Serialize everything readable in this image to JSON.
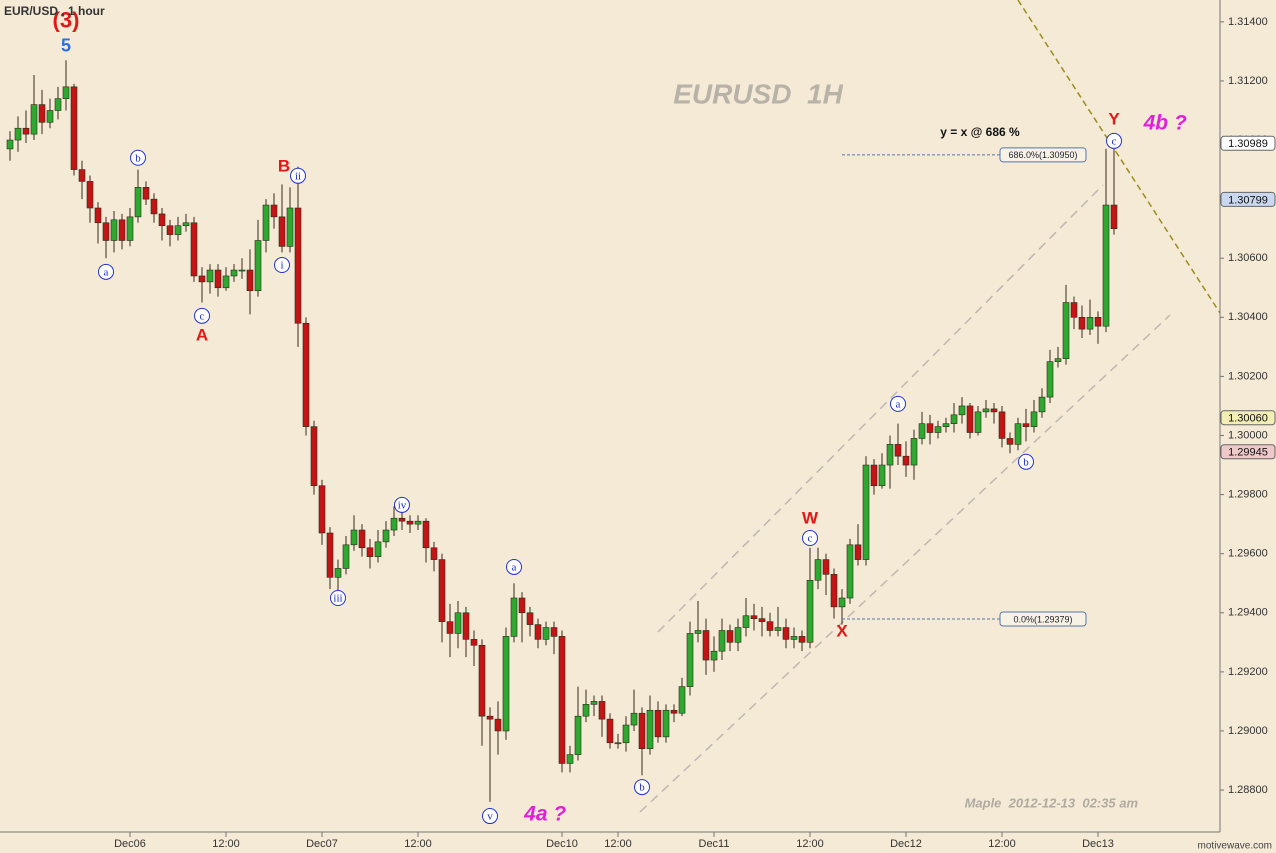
{
  "chart_data": {
    "type": "candlestick",
    "title": "EUR/USD , 1 hour",
    "watermark": "EURUSD  1H",
    "footer": "Maple  2012-12-13  02:35 am",
    "brand": "motivewave.com",
    "up_color": "#2ea82e",
    "down_color": "#c41414",
    "x": [
      0,
      1,
      2,
      3,
      4,
      5,
      6,
      7,
      8,
      9,
      10,
      11,
      12,
      13,
      14,
      15,
      16,
      17,
      18,
      19,
      20,
      21,
      22,
      23,
      24,
      25,
      26,
      27,
      28,
      29,
      30,
      31,
      32,
      33,
      34,
      35,
      36,
      37,
      38,
      39,
      40,
      41,
      42,
      43,
      44,
      45,
      46,
      47,
      48,
      49,
      50,
      51,
      52,
      53,
      54,
      55,
      56,
      57,
      58,
      59,
      60,
      61,
      62,
      63,
      64,
      65,
      66,
      67,
      68,
      69,
      70,
      71,
      72,
      73,
      74,
      75,
      76,
      77,
      78,
      79,
      80,
      81,
      82,
      83,
      84,
      85,
      86,
      87,
      88,
      89,
      90,
      91,
      92,
      93,
      94,
      95,
      96,
      97,
      98,
      99,
      100,
      101,
      102,
      103,
      104,
      105,
      106,
      107,
      108,
      109,
      110,
      111,
      112,
      113,
      114,
      115,
      116,
      117,
      118,
      119,
      120,
      121,
      122,
      123,
      124,
      125,
      126,
      127,
      128,
      129,
      130,
      131,
      132,
      133,
      134,
      135,
      136,
      137,
      138
    ],
    "open": [
      1.3097,
      1.31,
      1.3104,
      1.3102,
      1.3112,
      1.3106,
      1.311,
      1.3114,
      1.3118,
      1.309,
      1.3086,
      1.3077,
      1.3072,
      1.3066,
      1.3073,
      1.3066,
      1.3074,
      1.3084,
      1.308,
      1.3075,
      1.3071,
      1.3068,
      1.3071,
      1.3072,
      1.3054,
      1.3052,
      1.3056,
      1.305,
      1.3054,
      1.3056,
      1.3056,
      1.3049,
      1.3066,
      1.3078,
      1.3074,
      1.3064,
      1.3077,
      1.3038,
      1.3003,
      1.2983,
      1.2967,
      1.2952,
      1.2955,
      1.2963,
      1.2968,
      1.2962,
      1.2959,
      1.2964,
      1.2968,
      1.2972,
      1.2971,
      1.297,
      1.2971,
      1.2962,
      1.2958,
      1.2937,
      1.2933,
      1.294,
      1.2931,
      1.2929,
      1.2905,
      1.2904,
      1.29,
      1.2932,
      1.2945,
      1.294,
      1.2936,
      1.2931,
      1.2935,
      1.2932,
      1.2889,
      1.2892,
      1.2905,
      1.2909,
      1.291,
      1.2904,
      1.2896,
      1.2896,
      1.2902,
      1.2906,
      1.2894,
      1.2907,
      1.2898,
      1.2907,
      1.2906,
      1.2915,
      1.2933,
      1.2934,
      1.2924,
      1.2927,
      1.2934,
      1.293,
      1.2935,
      1.2939,
      1.2938,
      1.2937,
      1.2934,
      1.2935,
      1.2931,
      1.2932,
      1.293,
      1.2951,
      1.2958,
      1.2953,
      1.2942,
      1.2945,
      1.2963,
      1.2958,
      1.299,
      1.2983,
      1.299,
      1.2997,
      1.2993,
      1.299,
      1.2999,
      1.3004,
      1.3001,
      1.3003,
      1.3004,
      1.3007,
      1.301,
      1.3001,
      1.3008,
      1.3009,
      1.3008,
      1.2999,
      1.2997,
      1.3004,
      1.3003,
      1.3008,
      1.3013,
      1.3025,
      1.3026,
      1.3045,
      1.304,
      1.3036,
      1.304,
      1.3037,
      1.3078
    ],
    "high": [
      1.3103,
      1.3108,
      1.311,
      1.3122,
      1.3117,
      1.3114,
      1.3118,
      1.3127,
      1.3119,
      1.3093,
      1.3088,
      1.3079,
      1.3074,
      1.3076,
      1.3075,
      1.3077,
      1.309,
      1.3086,
      1.3082,
      1.3077,
      1.3073,
      1.3074,
      1.3075,
      1.3074,
      1.3057,
      1.3058,
      1.3058,
      1.3057,
      1.3058,
      1.306,
      1.3063,
      1.3073,
      1.308,
      1.3082,
      1.3085,
      1.3084,
      1.3091,
      1.304,
      1.3005,
      1.2985,
      1.2969,
      1.2958,
      1.2966,
      1.2973,
      1.297,
      1.2965,
      1.2968,
      1.2971,
      1.2976,
      1.2974,
      1.2973,
      1.2973,
      1.2972,
      1.2964,
      1.296,
      1.2943,
      1.2944,
      1.2942,
      1.2934,
      1.2931,
      1.2908,
      1.291,
      1.2935,
      1.295,
      1.2947,
      1.2942,
      1.2938,
      1.2937,
      1.2937,
      1.2934,
      1.2895,
      1.2915,
      1.2914,
      1.2912,
      1.2912,
      1.2906,
      1.2899,
      1.2905,
      1.2914,
      1.2908,
      1.2912,
      1.291,
      1.2909,
      1.2909,
      1.2918,
      1.2937,
      1.2944,
      1.2938,
      1.2932,
      1.2938,
      1.2936,
      1.2938,
      1.2945,
      1.2943,
      1.2942,
      1.294,
      1.2942,
      1.2938,
      1.2935,
      1.2934,
      1.2962,
      1.2962,
      1.296,
      1.2955,
      1.2948,
      1.2965,
      1.297,
      1.2993,
      1.2992,
      1.2994,
      1.3,
      1.3004,
      1.2998,
      1.3002,
      1.3008,
      1.3007,
      1.3005,
      1.3006,
      1.3011,
      1.3013,
      1.3011,
      1.301,
      1.3012,
      1.3011,
      1.301,
      1.3001,
      1.3006,
      1.3009,
      1.3012,
      1.3016,
      1.3029,
      1.303,
      1.3051,
      1.3047,
      1.3044,
      1.3046,
      1.3042,
      1.3097,
      1.3097
    ],
    "low": [
      1.3093,
      1.3096,
      1.3099,
      1.31,
      1.3102,
      1.3104,
      1.3107,
      1.311,
      1.3088,
      1.308,
      1.3072,
      1.3065,
      1.306,
      1.3062,
      1.3063,
      1.3064,
      1.3072,
      1.3078,
      1.3072,
      1.3066,
      1.3064,
      1.3066,
      1.3069,
      1.3052,
      1.3045,
      1.3048,
      1.3047,
      1.3049,
      1.3052,
      1.3053,
      1.3041,
      1.3047,
      1.3062,
      1.307,
      1.3062,
      1.3062,
      1.303,
      1.3,
      1.298,
      1.2963,
      1.2948,
      1.2947,
      1.2953,
      1.2961,
      1.2959,
      1.2955,
      1.2957,
      1.2962,
      1.2966,
      1.2968,
      1.2967,
      1.2968,
      1.2957,
      1.2954,
      1.293,
      1.2925,
      1.2928,
      1.2925,
      1.2922,
      1.2895,
      1.2876,
      1.2892,
      1.2897,
      1.293,
      1.293,
      1.2932,
      1.2928,
      1.2929,
      1.2926,
      1.2886,
      1.2886,
      1.289,
      1.2903,
      1.2905,
      1.2898,
      1.2894,
      1.2894,
      1.2893,
      1.29,
      1.2885,
      1.2892,
      1.2896,
      1.2896,
      1.2903,
      1.2905,
      1.2912,
      1.293,
      1.2919,
      1.292,
      1.2924,
      1.2927,
      1.2927,
      1.2932,
      1.2934,
      1.2932,
      1.2932,
      1.2932,
      1.2928,
      1.2928,
      1.2927,
      1.2928,
      1.2948,
      1.2946,
      1.2938,
      1.2936,
      1.2943,
      1.2956,
      1.2956,
      1.298,
      1.2982,
      1.2982,
      1.299,
      1.2986,
      1.2985,
      1.2997,
      1.2997,
      1.2999,
      1.3001,
      1.3001,
      1.3004,
      1.2999,
      1.3,
      1.3006,
      1.3004,
      1.2996,
      1.2994,
      1.2995,
      1.2998,
      1.3001,
      1.3006,
      1.3011,
      1.3023,
      1.3024,
      1.3036,
      1.3033,
      1.3034,
      1.3031,
      1.3035,
      1.3068
    ],
    "close": [
      1.31,
      1.3104,
      1.3102,
      1.3112,
      1.3106,
      1.311,
      1.3114,
      1.3118,
      1.309,
      1.3086,
      1.3077,
      1.3072,
      1.3066,
      1.3073,
      1.3066,
      1.3074,
      1.3084,
      1.308,
      1.3075,
      1.3071,
      1.3068,
      1.3071,
      1.3072,
      1.3054,
      1.3052,
      1.3056,
      1.305,
      1.3054,
      1.3056,
      1.3056,
      1.3049,
      1.3066,
      1.3078,
      1.3074,
      1.3064,
      1.3077,
      1.3038,
      1.3003,
      1.2983,
      1.2967,
      1.2952,
      1.2955,
      1.2963,
      1.2968,
      1.2962,
      1.2959,
      1.2964,
      1.2968,
      1.2972,
      1.2971,
      1.297,
      1.2971,
      1.2962,
      1.2958,
      1.2937,
      1.2933,
      1.294,
      1.2931,
      1.2929,
      1.2905,
      1.2904,
      1.29,
      1.2932,
      1.2945,
      1.294,
      1.2936,
      1.2931,
      1.2935,
      1.2932,
      1.2889,
      1.2892,
      1.2905,
      1.2909,
      1.291,
      1.2904,
      1.2896,
      1.2896,
      1.2902,
      1.2906,
      1.2894,
      1.2907,
      1.2898,
      1.2907,
      1.2906,
      1.2915,
      1.2933,
      1.2934,
      1.2924,
      1.2927,
      1.2934,
      1.293,
      1.2935,
      1.2939,
      1.2938,
      1.2937,
      1.2934,
      1.2935,
      1.2931,
      1.2932,
      1.293,
      1.2951,
      1.2958,
      1.2953,
      1.2942,
      1.2945,
      1.2963,
      1.2958,
      1.299,
      1.2983,
      1.299,
      1.2997,
      1.2993,
      1.299,
      1.2999,
      1.3004,
      1.3001,
      1.3003,
      1.3004,
      1.3007,
      1.301,
      1.3001,
      1.3008,
      1.3009,
      1.3008,
      1.2999,
      1.2997,
      1.3004,
      1.3003,
      1.3008,
      1.3013,
      1.3025,
      1.3026,
      1.3045,
      1.304,
      1.3036,
      1.304,
      1.3037,
      1.3078,
      1.307
    ],
    "xlim": [
      -1.25,
      151.25
    ],
    "ylim": [
      1.28658,
      1.31474
    ],
    "xticks": [
      {
        "value": 15,
        "label": "Dec06"
      },
      {
        "value": 27,
        "label": "12:00"
      },
      {
        "value": 39,
        "label": "Dec07"
      },
      {
        "value": 51,
        "label": "12:00"
      },
      {
        "value": 69,
        "label": "Dec10"
      },
      {
        "value": 76,
        "label": "12:00"
      },
      {
        "value": 88,
        "label": "Dec11"
      },
      {
        "value": 100,
        "label": "12:00"
      },
      {
        "value": 112,
        "label": "Dec12"
      },
      {
        "value": 124,
        "label": "12:00"
      },
      {
        "value": 136,
        "label": "Dec13"
      }
    ],
    "yticks": [
      {
        "value": 1.288,
        "label": "1.28800"
      },
      {
        "value": 1.29,
        "label": "1.29000"
      },
      {
        "value": 1.292,
        "label": "1.29200"
      },
      {
        "value": 1.294,
        "label": "1.29400"
      },
      {
        "value": 1.296,
        "label": "1.29600"
      },
      {
        "value": 1.298,
        "label": "1.29800"
      },
      {
        "value": 1.3,
        "label": "1.30000"
      },
      {
        "value": 1.302,
        "label": "1.30200"
      },
      {
        "value": 1.304,
        "label": "1.30400"
      },
      {
        "value": 1.306,
        "label": "1.30600"
      },
      {
        "value": 1.308,
        "label": "1.30800"
      },
      {
        "value": 1.31,
        "label": "1.31000"
      },
      {
        "value": 1.312,
        "label": "1.31200"
      },
      {
        "value": 1.314,
        "label": "1.31400"
      }
    ],
    "price_markers": [
      {
        "value": 1.30989,
        "label": "1.30989",
        "color": "#ffffff"
      },
      {
        "value": 1.30799,
        "label": "1.30799",
        "color": "#c9d8ee"
      },
      {
        "value": 1.3006,
        "label": "1.30060",
        "color": "#f2eeb4"
      },
      {
        "value": 1.29945,
        "label": "1.29945",
        "color": "#efc9c9"
      }
    ],
    "levels": [
      {
        "label": "686.0%(1.30950)",
        "value": 1.3095,
        "from": 104,
        "to": 134.5
      },
      {
        "label": "0.0%(1.29379)",
        "value": 1.29379,
        "from": 104,
        "to": 134.5
      }
    ],
    "annotations": [
      {
        "text": "(3)",
        "x": 7,
        "y": 1.314,
        "style": "degree-red"
      },
      {
        "text": "5",
        "x": 7,
        "y": 1.31315,
        "style": "wave-blue"
      },
      {
        "text": "a",
        "x": 12,
        "y": 1.30554,
        "style": "circled"
      },
      {
        "text": "b",
        "x": 16,
        "y": 1.3094,
        "style": "circled"
      },
      {
        "text": "c",
        "x": 24,
        "y": 1.30405,
        "style": "circled"
      },
      {
        "text": "A",
        "x": 24,
        "y": 1.30337,
        "style": "wave-red"
      },
      {
        "text": "B",
        "x": 34.25,
        "y": 1.30909,
        "style": "wave-red"
      },
      {
        "text": "ii",
        "x": 36,
        "y": 1.30879,
        "style": "circled"
      },
      {
        "text": "i",
        "x": 34,
        "y": 1.30577,
        "style": "circled"
      },
      {
        "text": "iii",
        "x": 41,
        "y": 1.2945,
        "style": "circled"
      },
      {
        "text": "iv",
        "x": 49,
        "y": 1.29765,
        "style": "circled"
      },
      {
        "text": "v",
        "x": 60,
        "y": 1.28712,
        "style": "circled"
      },
      {
        "text": "a",
        "x": 63,
        "y": 1.29555,
        "style": "circled"
      },
      {
        "text": "4a ?",
        "x": 66.9,
        "y": 1.28716,
        "style": "magenta"
      },
      {
        "text": "b",
        "x": 79,
        "y": 1.2881,
        "style": "circled"
      },
      {
        "text": "W",
        "x": 100,
        "y": 1.29718,
        "style": "wave-red"
      },
      {
        "text": "c",
        "x": 100,
        "y": 1.29653,
        "style": "circled"
      },
      {
        "text": "X",
        "x": 104,
        "y": 1.29335,
        "style": "wave-red"
      },
      {
        "text": "a",
        "x": 111,
        "y": 1.30107,
        "style": "circled"
      },
      {
        "text": "b",
        "x": 127,
        "y": 1.29911,
        "style": "circled"
      },
      {
        "text": "Y",
        "x": 138,
        "y": 1.31068,
        "style": "wave-red"
      },
      {
        "text": "c",
        "x": 138,
        "y": 1.30997,
        "style": "circled"
      },
      {
        "text": "4b ?",
        "x": 144.4,
        "y": 1.31055,
        "style": "magenta"
      },
      {
        "text": "y = x @ 686 %",
        "x": 121.25,
        "y": 1.31024,
        "style": "note"
      }
    ]
  }
}
